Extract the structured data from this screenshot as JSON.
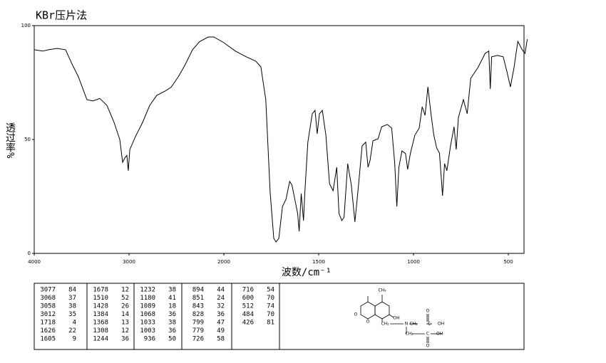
{
  "chart_data": {
    "type": "line",
    "title": "KBr压片法",
    "xlabel": "波数/cm⁻¹",
    "ylabel": "透过率%",
    "x": [
      4000,
      3910,
      3850,
      3759,
      3669,
      3609,
      3534,
      3444,
      3383,
      3308,
      3233,
      3158,
      3098,
      3068,
      3045,
      3023,
      3008,
      2992,
      2932,
      2857,
      2782,
      2707,
      2617,
      2556,
      2481,
      2406,
      2331,
      2256,
      2165,
      2105,
      2000,
      1939,
      1882,
      1832,
      1805,
      1779,
      1756,
      1737,
      1725,
      1710,
      1691,
      1672,
      1653,
      1641,
      1626,
      1611,
      1603,
      1592,
      1580,
      1573,
      1557,
      1534,
      1519,
      1508,
      1496,
      1481,
      1462,
      1443,
      1424,
      1405,
      1393,
      1378,
      1366,
      1347,
      1328,
      1309,
      1290,
      1271,
      1252,
      1240,
      1229,
      1214,
      1187,
      1168,
      1138,
      1115,
      1099,
      1088,
      1077,
      1061,
      1042,
      1031,
      1016,
      993,
      970,
      954,
      939,
      924,
      908,
      893,
      878,
      863,
      855,
      847,
      836,
      824,
      805,
      786,
      775,
      763,
      737,
      717,
      698,
      660,
      622,
      603,
      595,
      588,
      557,
      527,
      508,
      489,
      470,
      450,
      427,
      412,
      400
    ],
    "values": [
      89.4,
      88.8,
      89.4,
      90,
      89.4,
      83.8,
      77.5,
      67.5,
      66.9,
      68,
      65,
      57.5,
      50,
      40,
      41.9,
      43,
      36.3,
      45.6,
      51.3,
      57.5,
      65,
      69.4,
      71.3,
      73,
      77.5,
      83,
      89.4,
      93,
      95,
      95,
      92.5,
      88.8,
      86.3,
      84.4,
      81.9,
      67.5,
      26.9,
      6.6,
      5,
      6.6,
      20.6,
      23.8,
      31.6,
      30,
      23.8,
      17.5,
      9.7,
      26.3,
      14.4,
      26.9,
      48.8,
      61.3,
      62.8,
      52.5,
      61.3,
      62.8,
      51.9,
      30.6,
      27.5,
      37.8,
      17.5,
      14.4,
      15.9,
      39.4,
      30,
      13.8,
      30,
      47.2,
      48.8,
      37.8,
      40.9,
      49.4,
      50.3,
      55.6,
      56.6,
      55,
      39.4,
      20.6,
      37.8,
      45,
      43.8,
      36.9,
      44,
      51.9,
      55,
      64.4,
      60.6,
      73.1,
      61.3,
      51.9,
      46.3,
      44,
      34.7,
      25.3,
      39.4,
      36.3,
      47.2,
      55.6,
      45.6,
      59.7,
      67.5,
      61.3,
      76.9,
      81.6,
      87.8,
      88.8,
      72.2,
      86.3,
      86.9,
      86.3,
      80,
      73.1,
      81.6,
      93.1,
      89.4,
      87.8,
      94
    ],
    "color": "#000000",
    "xlim": [
      4000,
      400
    ],
    "xticks": [
      4000,
      3000,
      2000,
      1500,
      1000,
      500
    ],
    "ylim": [
      0,
      100
    ],
    "yticks": [
      0,
      50,
      100
    ]
  },
  "peak_table": {
    "columns": [
      {
        "wavenumbers": [
          3077,
          3068,
          3058,
          3012,
          1718,
          1626,
          1605
        ],
        "transmittance": [
          84,
          37,
          38,
          35,
          4,
          22,
          9
        ]
      },
      {
        "wavenumbers": [
          1678,
          1510,
          1428,
          1384,
          1368,
          1308,
          1244
        ],
        "transmittance": [
          12,
          52,
          26,
          14,
          13,
          12,
          36
        ]
      },
      {
        "wavenumbers": [
          1232,
          1180,
          1089,
          1068,
          1033,
          1003,
          936
        ],
        "transmittance": [
          38,
          41,
          18,
          36,
          38,
          36,
          50
        ]
      },
      {
        "wavenumbers": [
          894,
          851,
          843,
          828,
          799,
          779,
          726
        ],
        "transmittance": [
          44,
          24,
          32,
          36,
          47,
          49,
          58
        ]
      },
      {
        "wavenumbers": [
          716,
          600,
          512,
          484,
          426
        ],
        "transmittance": [
          54,
          70,
          74,
          70,
          81
        ]
      }
    ]
  },
  "structure": {
    "labels": [
      "CH₃",
      "O",
      "O",
      "OH",
      "CH₂",
      "N",
      "CH₂",
      "C",
      "O",
      "OH",
      "CH₂",
      "C",
      "OH",
      "O"
    ]
  }
}
